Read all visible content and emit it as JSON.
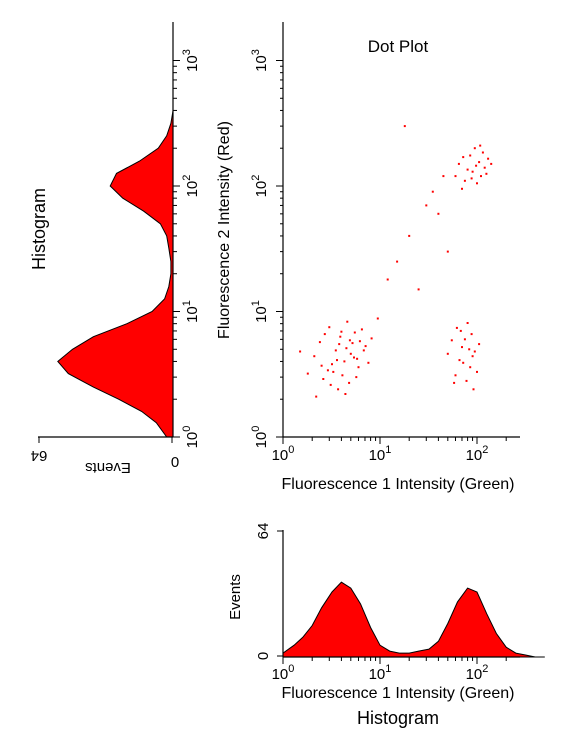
{
  "chart_data": [
    {
      "type": "scatter",
      "title": "Dot Plot",
      "xlabel": "Fluorescence 1 Intensity (Green)",
      "ylabel": "Fluorescence 2 Intensity (Red)",
      "x_scale": "log",
      "y_scale": "log",
      "xlim": [
        1,
        1000
      ],
      "ylim": [
        1,
        1000
      ],
      "x_ticks": [
        {
          "value": 1,
          "label_base": "10",
          "label_exp": "0"
        },
        {
          "value": 10,
          "label_base": "10",
          "label_exp": "1"
        },
        {
          "value": 100,
          "label_base": "10",
          "label_exp": "2"
        }
      ],
      "y_ticks": [
        {
          "value": 1,
          "label_base": "10",
          "label_exp": "0"
        },
        {
          "value": 10,
          "label_base": "10",
          "label_exp": "1"
        },
        {
          "value": 100,
          "label_base": "10",
          "label_exp": "2"
        },
        {
          "value": 1000,
          "label_base": "10",
          "label_exp": "3"
        }
      ],
      "color": "#ff0000",
      "points": [
        [
          3.2,
          3.8
        ],
        [
          4.5,
          5.1
        ],
        [
          2.6,
          2.9
        ],
        [
          5.8,
          4.2
        ],
        [
          3.9,
          6.3
        ],
        [
          2.1,
          4.4
        ],
        [
          6.5,
          7.2
        ],
        [
          4.1,
          3.1
        ],
        [
          3.5,
          4.9
        ],
        [
          5.2,
          5.6
        ],
        [
          2.9,
          3.4
        ],
        [
          4.8,
          2.7
        ],
        [
          7.1,
          5.3
        ],
        [
          3.0,
          7.5
        ],
        [
          1.8,
          3.2
        ],
        [
          4.3,
          4.0
        ],
        [
          6.0,
          3.6
        ],
        [
          3.7,
          2.4
        ],
        [
          5.5,
          6.8
        ],
        [
          2.4,
          5.7
        ],
        [
          8.2,
          6.1
        ],
        [
          4.6,
          8.3
        ],
        [
          3.3,
          3.3
        ],
        [
          2.2,
          2.1
        ],
        [
          5.0,
          4.6
        ],
        [
          6.8,
          4.9
        ],
        [
          3.8,
          5.5
        ],
        [
          4.4,
          2.2
        ],
        [
          2.7,
          6.6
        ],
        [
          9.5,
          8.8
        ],
        [
          1.5,
          4.8
        ],
        [
          5.7,
          3.0
        ],
        [
          3.6,
          4.1
        ],
        [
          4.9,
          5.9
        ],
        [
          7.6,
          3.9
        ],
        [
          2.5,
          3.7
        ],
        [
          4.0,
          6.9
        ],
        [
          6.2,
          5.8
        ],
        [
          3.1,
          2.6
        ],
        [
          5.4,
          4.3
        ],
        [
          70,
          5.2
        ],
        [
          85,
          3.6
        ],
        [
          62,
          7.4
        ],
        [
          95,
          4.8
        ],
        [
          78,
          2.8
        ],
        [
          55,
          5.9
        ],
        [
          88,
          6.6
        ],
        [
          72,
          3.9
        ],
        [
          105,
          5.5
        ],
        [
          66,
          4.1
        ],
        [
          80,
          8.1
        ],
        [
          60,
          3.1
        ],
        [
          92,
          2.4
        ],
        [
          75,
          6.0
        ],
        [
          50,
          4.6
        ],
        [
          100,
          3.3
        ],
        [
          68,
          7.0
        ],
        [
          83,
          5.0
        ],
        [
          58,
          2.7
        ],
        [
          90,
          4.4
        ],
        [
          90,
          130
        ],
        [
          105,
          155
        ],
        [
          75,
          110
        ],
        [
          120,
          140
        ],
        [
          85,
          175
        ],
        [
          70,
          95
        ],
        [
          110,
          120
        ],
        [
          95,
          200
        ],
        [
          130,
          165
        ],
        [
          80,
          135
        ],
        [
          100,
          105
        ],
        [
          65,
          150
        ],
        [
          115,
          185
        ],
        [
          88,
          115
        ],
        [
          125,
          125
        ],
        [
          72,
          170
        ],
        [
          98,
          145
        ],
        [
          140,
          150
        ],
        [
          60,
          120
        ],
        [
          108,
          210
        ],
        [
          20,
          40
        ],
        [
          30,
          70
        ],
        [
          15,
          25
        ],
        [
          40,
          60
        ],
        [
          18,
          300
        ],
        [
          25,
          15
        ],
        [
          45,
          120
        ],
        [
          12,
          18
        ],
        [
          35,
          90
        ],
        [
          50,
          30
        ]
      ]
    },
    {
      "type": "area",
      "title": "Histogram",
      "xlabel": "Fluorescence 1 Intensity (Green)",
      "ylabel": "Events",
      "x_scale": "log",
      "xlim": [
        1,
        1000
      ],
      "ylim": [
        0,
        64
      ],
      "y_tick_labels": [
        "0",
        "64"
      ],
      "x_ticks": [
        {
          "value": 1,
          "label_base": "10",
          "label_exp": "0"
        },
        {
          "value": 10,
          "label_base": "10",
          "label_exp": "1"
        },
        {
          "value": 100,
          "label_base": "10",
          "label_exp": "2"
        }
      ],
      "color": "#ff0000",
      "x": [
        1.0,
        1.3,
        1.6,
        2.0,
        2.5,
        3.2,
        4.0,
        5.0,
        6.3,
        8.0,
        10,
        12.6,
        15.8,
        20,
        25,
        32,
        40,
        50,
        63,
        80,
        100,
        126,
        158,
        200,
        251,
        316,
        398,
        500
      ],
      "values": [
        2,
        6,
        10,
        16,
        25,
        33,
        38,
        35,
        27,
        15,
        6,
        3,
        2,
        2,
        3,
        4,
        8,
        17,
        28,
        35,
        33,
        22,
        12,
        5,
        2,
        1,
        0,
        0
      ]
    },
    {
      "type": "area",
      "title": "Histogram",
      "xlabel": "Fluorescence 2 Intensity (Red)",
      "ylabel": "Events",
      "orientation": "rotated",
      "x_scale": "log",
      "xlim": [
        1,
        1000
      ],
      "ylim": [
        0,
        64
      ],
      "y_tick_labels": [
        "0",
        "64"
      ],
      "x_ticks": [
        {
          "value": 1,
          "label_base": "10",
          "label_exp": "0"
        },
        {
          "value": 10,
          "label_base": "10",
          "label_exp": "1"
        },
        {
          "value": 100,
          "label_base": "10",
          "label_exp": "2"
        },
        {
          "value": 1000,
          "label_base": "10",
          "label_exp": "3"
        }
      ],
      "color": "#ff0000",
      "x": [
        1.0,
        1.3,
        1.6,
        2.0,
        2.5,
        3.2,
        4.0,
        5.0,
        6.3,
        8.0,
        10,
        12.6,
        15.8,
        20,
        25,
        32,
        40,
        50,
        63,
        80,
        100,
        126,
        158,
        200,
        251,
        316,
        398,
        500,
        630,
        800,
        1000
      ],
      "values": [
        3,
        8,
        15,
        26,
        38,
        50,
        55,
        48,
        38,
        22,
        10,
        4,
        2,
        1,
        1,
        2,
        3,
        6,
        14,
        24,
        30,
        27,
        16,
        7,
        3,
        1,
        0,
        0,
        0,
        0,
        0
      ]
    }
  ]
}
